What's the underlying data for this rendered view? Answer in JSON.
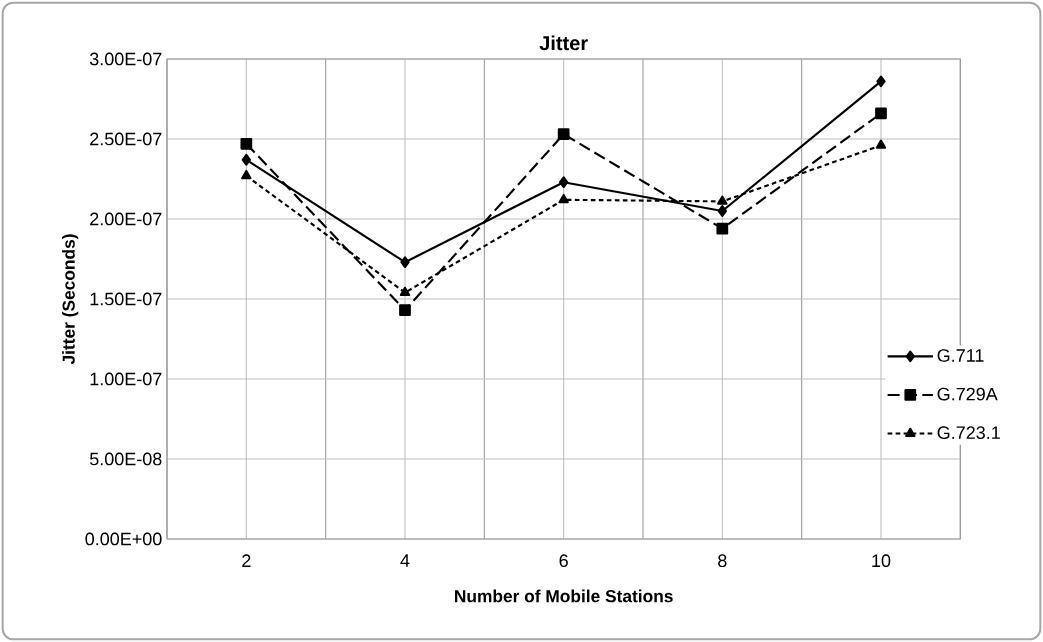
{
  "chart_data": {
    "type": "line",
    "title": "Jitter",
    "xlabel": "Number of Mobile Stations",
    "ylabel": "Jitter (Seconds)",
    "categories": [
      "2",
      "4",
      "6",
      "8",
      "10"
    ],
    "series": [
      {
        "name": "G.711",
        "color": "#000000",
        "marker": "diamond",
        "line_style": "solid",
        "values": [
          2.37e-07,
          1.73e-07,
          2.23e-07,
          2.05e-07,
          2.86e-07
        ]
      },
      {
        "name": "G.729A",
        "color": "#000000",
        "marker": "square",
        "line_style": "dashed",
        "values": [
          2.47e-07,
          1.43e-07,
          2.53e-07,
          1.94e-07,
          2.66e-07
        ]
      },
      {
        "name": "G.723.1",
        "color": "#000000",
        "marker": "triangle",
        "line_style": "dotted",
        "values": [
          2.27e-07,
          1.54e-07,
          2.12e-07,
          2.11e-07,
          2.46e-07
        ]
      }
    ],
    "ylim": [
      0,
      3e-07
    ],
    "yticks": [
      {
        "value": 0,
        "label": "0.00E+00"
      },
      {
        "value": 5e-08,
        "label": "5.00E-08"
      },
      {
        "value": 1e-07,
        "label": "1.00E-07"
      },
      {
        "value": 1.5e-07,
        "label": "1.50E-07"
      },
      {
        "value": 2e-07,
        "label": "2.00E-07"
      },
      {
        "value": 2.5e-07,
        "label": "2.50E-07"
      },
      {
        "value": 3e-07,
        "label": "3.00E-07"
      }
    ],
    "grid": true,
    "legend": "right"
  }
}
